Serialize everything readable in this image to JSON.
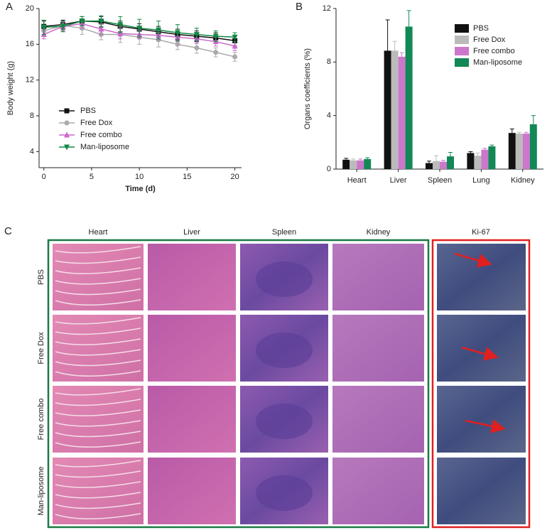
{
  "chart_data": [
    {
      "type": "line",
      "panel_label": "A",
      "x_label": "Time (d)",
      "y_label": "Body weight (g)",
      "x": [
        0,
        2,
        4,
        6,
        8,
        10,
        12,
        14,
        16,
        18,
        20
      ],
      "xlim": [
        -0.5,
        20.7
      ],
      "xticks": [
        0,
        5,
        10,
        15,
        20
      ],
      "ylim": [
        2.2,
        20
      ],
      "yticks": [
        4,
        8,
        12,
        16,
        20
      ],
      "legend_position": "lower left",
      "series": [
        {
          "name": "PBS",
          "color": "#111111",
          "marker": "square",
          "values": [
            18.0,
            18.2,
            18.6,
            18.5,
            18.0,
            17.7,
            17.4,
            17.1,
            16.9,
            16.7,
            16.4
          ],
          "errors": [
            0.6,
            0.5,
            0.5,
            0.6,
            0.6,
            0.6,
            0.6,
            0.6,
            0.6,
            0.6,
            0.6
          ]
        },
        {
          "name": "Free Dox",
          "color": "#aaaaaa",
          "marker": "circle",
          "values": [
            17.5,
            18.1,
            17.8,
            17.1,
            17.1,
            16.8,
            16.5,
            16.0,
            15.6,
            15.1,
            14.6
          ],
          "errors": [
            0.5,
            0.5,
            0.7,
            0.6,
            0.9,
            0.8,
            0.8,
            0.6,
            0.6,
            0.5,
            0.5
          ]
        },
        {
          "name": "Free combo",
          "color": "#cc66cc",
          "marker": "triangle-up",
          "values": [
            17.1,
            18.0,
            18.3,
            17.7,
            17.2,
            17.1,
            17.0,
            16.8,
            16.6,
            16.3,
            15.8
          ],
          "errors": [
            0.5,
            0.5,
            0.5,
            0.6,
            0.6,
            0.5,
            0.5,
            0.5,
            0.5,
            0.5,
            0.5
          ]
        },
        {
          "name": "Man-liposome",
          "color": "#118844",
          "marker": "triangle-down",
          "values": [
            17.9,
            18.0,
            18.6,
            18.6,
            18.2,
            17.8,
            17.6,
            17.3,
            17.1,
            16.9,
            16.8
          ],
          "errors": [
            0.8,
            0.6,
            0.5,
            0.6,
            0.9,
            1.0,
            1.0,
            0.9,
            0.7,
            0.6,
            0.5
          ]
        }
      ]
    },
    {
      "type": "bar",
      "panel_label": "B",
      "y_label": "Organs coefficients (%)",
      "categories": [
        "Heart",
        "Liver",
        "Spleen",
        "Lung",
        "Kidney"
      ],
      "ylim": [
        0,
        12
      ],
      "yticks": [
        0,
        4,
        8,
        12
      ],
      "legend_position": "upper right",
      "series": [
        {
          "name": "PBS",
          "color": "#111111",
          "values": [
            0.7,
            8.85,
            0.45,
            1.2,
            2.7
          ],
          "errors": [
            0.1,
            2.3,
            0.15,
            0.1,
            0.3
          ]
        },
        {
          "name": "Free Dox",
          "color": "#bbbbbb",
          "values": [
            0.65,
            8.85,
            0.6,
            1.0,
            2.65
          ],
          "errors": [
            0.1,
            0.7,
            0.4,
            0.2,
            0.1
          ]
        },
        {
          "name": "Free combo",
          "color": "#cc77cc",
          "values": [
            0.65,
            8.4,
            0.55,
            1.45,
            2.65
          ],
          "errors": [
            0.1,
            0.3,
            0.1,
            0.1,
            0.1
          ]
        },
        {
          "name": "Man-liposome",
          "color": "#118855",
          "values": [
            0.75,
            10.65,
            0.95,
            1.7,
            3.35
          ],
          "errors": [
            0.1,
            1.2,
            0.3,
            0.1,
            0.65
          ]
        }
      ]
    }
  ],
  "panel_c": {
    "label": "C",
    "columns": [
      "Heart",
      "Liver",
      "Spleen",
      "Kidney"
    ],
    "stain_column": "Ki-67",
    "rows": [
      "PBS",
      "Free Dox",
      "Free combo",
      "Man-liposome"
    ]
  }
}
